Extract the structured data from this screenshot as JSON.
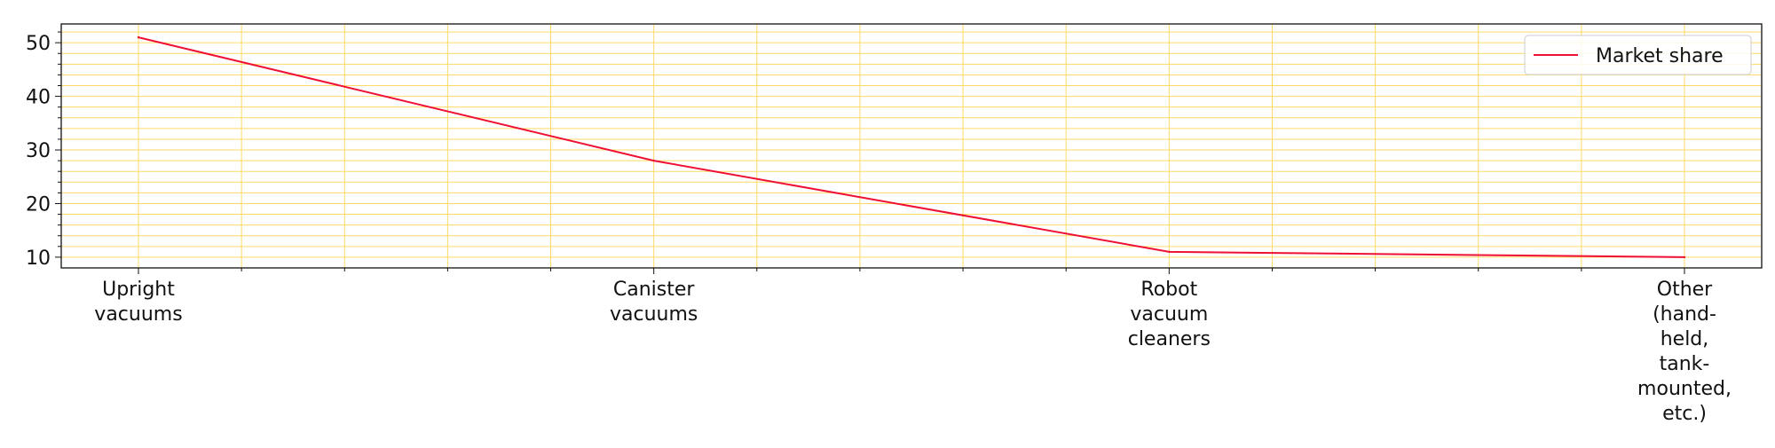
{
  "chart_data": {
    "type": "line",
    "title": "",
    "xlabel": "",
    "ylabel": "",
    "categories": [
      [
        "Upright",
        "vacuums"
      ],
      [
        "Canister",
        "vacuums"
      ],
      [
        "Robot",
        "vacuum",
        "cleaners"
      ],
      [
        "Other",
        "(hand-",
        "held,",
        "tank-",
        "mounted,",
        "etc.)"
      ]
    ],
    "series": [
      {
        "name": "Market share",
        "values": [
          51,
          28,
          11,
          10
        ],
        "color": "#ee1133"
      }
    ],
    "ylim": [
      8,
      53.5
    ],
    "yticks": [
      10,
      20,
      30,
      40,
      50
    ],
    "grid": true,
    "grid_color": "#ffd966",
    "legend_position": "top-right"
  }
}
